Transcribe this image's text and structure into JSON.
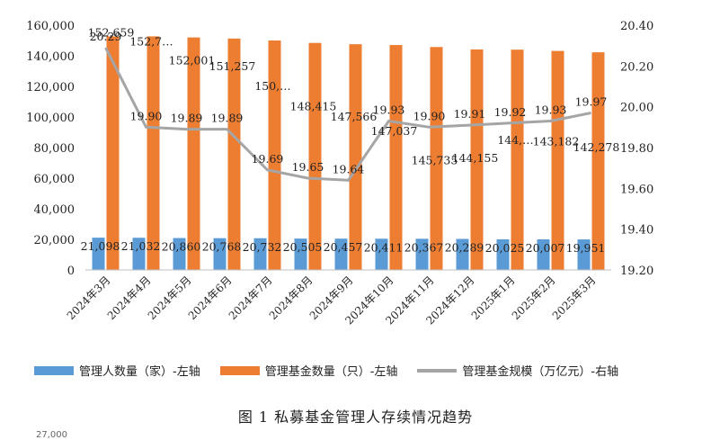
{
  "chart_data": {
    "type": "bar",
    "categories": [
      "2024年3月",
      "2024年4月",
      "2024年5月",
      "2024年6月",
      "2024年7月",
      "2024年8月",
      "2024年9月",
      "2024年10月",
      "2024年11月",
      "2024年12月",
      "2025年1月",
      "2025年2月",
      "2025年3月"
    ],
    "series": [
      {
        "name": "管理人数量（家）-左轴",
        "type": "bar",
        "axis": "left",
        "color": "#5b9bd5",
        "values": [
          21098,
          21032,
          20860,
          20768,
          20732,
          20505,
          20457,
          20411,
          20367,
          20289,
          20025,
          20007,
          19951
        ],
        "labels": [
          "21,098",
          "21,032",
          "20,860",
          "20,768",
          "20,732",
          "20,505",
          "20,457",
          "20,411",
          "20,367",
          "20,289",
          "20,025",
          "20,007",
          "19,951"
        ]
      },
      {
        "name": "管理基金数量（只）-左轴",
        "type": "bar",
        "axis": "left",
        "color": "#ed7d31",
        "values": [
          152659,
          152700,
          152001,
          151257,
          150000,
          148415,
          147566,
          147037,
          145735,
          144155,
          144000,
          143182,
          142278
        ],
        "labels": [
          "152,659",
          "152,7…",
          "152,001",
          "151,257",
          "150,…",
          "148,415",
          "147,566",
          "147,037",
          "145,735",
          "144,155",
          "144,…",
          "143,182",
          "142,278"
        ]
      },
      {
        "name": "管理基金规模（万亿元）-右轴",
        "type": "line",
        "axis": "right",
        "color": "#a5a5a5",
        "values": [
          20.29,
          19.9,
          19.89,
          19.89,
          19.69,
          19.65,
          19.64,
          19.93,
          19.9,
          19.91,
          19.92,
          19.93,
          19.97
        ],
        "labels": [
          "20.29",
          "19.90",
          "19.89",
          "19.89",
          "19.69",
          "19.65",
          "19.64",
          "19.93",
          "19.90",
          "19.91",
          "19.92",
          "19.93",
          "19.97"
        ]
      }
    ],
    "y_left": {
      "min": 0,
      "max": 160000,
      "ticks": [
        "0",
        "20,000",
        "40,000",
        "60,000",
        "80,000",
        "100,000",
        "120,000",
        "140,000",
        "160,000"
      ]
    },
    "y_right": {
      "min": 19.2,
      "max": 20.4,
      "ticks": [
        "19.20",
        "19.40",
        "19.60",
        "19.80",
        "20.00",
        "20.20",
        "20.40"
      ]
    },
    "grid": false,
    "legend_position": "bottom"
  },
  "caption": "图 1  私募基金管理人存续情况趋势",
  "stray_text": "27,000"
}
